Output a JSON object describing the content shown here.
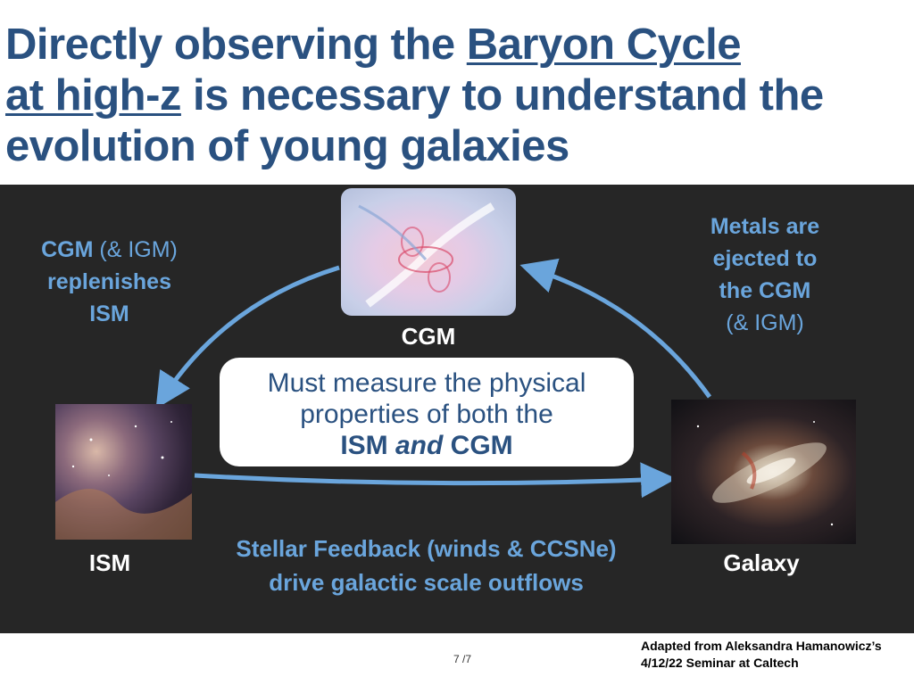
{
  "title": {
    "part1": "Directly observing the ",
    "underlined1": "Baryon Cycle",
    "underlined2": "at high-z",
    "part2": " is necessary to understand the evolution of young galaxies"
  },
  "diagram": {
    "cgm_label": "CGM",
    "ism_label": "ISM",
    "galaxy_label": "Galaxy",
    "left_note": {
      "bold": "CGM",
      "rest": " (& IGM)",
      "line2": "replenishes",
      "line3": "ISM"
    },
    "right_note": {
      "line1": "Metals are",
      "line2": "ejected to",
      "line3": "the CGM",
      "line4": "(& IGM)"
    },
    "bottom_note": {
      "line1": "Stellar Feedback (winds & CCSNe)",
      "line2": "drive galactic scale outflows"
    },
    "callout": {
      "line1": "Must measure the physical",
      "line2": "properties of both the",
      "line3_a": "ISM ",
      "line3_b": "and",
      "line3_c": " CGM"
    }
  },
  "footer": {
    "credit_line1": "Adapted from Aleksandra Hamanowicz’s",
    "credit_line2": "4/12/22 Seminar at Caltech",
    "page": "7 /7"
  },
  "colors": {
    "title": "#2a5180",
    "accent_blue": "#6aa5dc",
    "panel": "#262626"
  }
}
